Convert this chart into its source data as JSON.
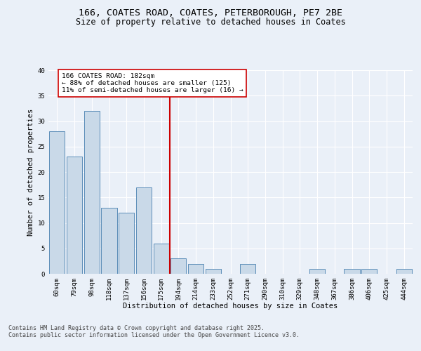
{
  "title1": "166, COATES ROAD, COATES, PETERBOROUGH, PE7 2BE",
  "title2": "Size of property relative to detached houses in Coates",
  "xlabel": "Distribution of detached houses by size in Coates",
  "ylabel": "Number of detached properties",
  "categories": [
    "60sqm",
    "79sqm",
    "98sqm",
    "118sqm",
    "137sqm",
    "156sqm",
    "175sqm",
    "194sqm",
    "214sqm",
    "233sqm",
    "252sqm",
    "271sqm",
    "290sqm",
    "310sqm",
    "329sqm",
    "348sqm",
    "367sqm",
    "386sqm",
    "406sqm",
    "425sqm",
    "444sqm"
  ],
  "values": [
    28,
    23,
    32,
    13,
    12,
    17,
    6,
    3,
    2,
    1,
    0,
    2,
    0,
    0,
    0,
    1,
    0,
    1,
    1,
    0,
    1
  ],
  "bar_color": "#c9d9e8",
  "bar_edge_color": "#5b8db8",
  "vline_color": "#cc0000",
  "annotation_text": "166 COATES ROAD: 182sqm\n← 88% of detached houses are smaller (125)\n11% of semi-detached houses are larger (16) →",
  "annotation_box_color": "#ffffff",
  "annotation_box_edge_color": "#cc0000",
  "ylim": [
    0,
    40
  ],
  "yticks": [
    0,
    5,
    10,
    15,
    20,
    25,
    30,
    35,
    40
  ],
  "background_color": "#eaf0f8",
  "footer_text": "Contains HM Land Registry data © Crown copyright and database right 2025.\nContains public sector information licensed under the Open Government Licence v3.0.",
  "title_fontsize": 9.5,
  "subtitle_fontsize": 8.5,
  "axis_label_fontsize": 7.5,
  "tick_fontsize": 6.5,
  "annotation_fontsize": 6.8,
  "footer_fontsize": 6.0
}
